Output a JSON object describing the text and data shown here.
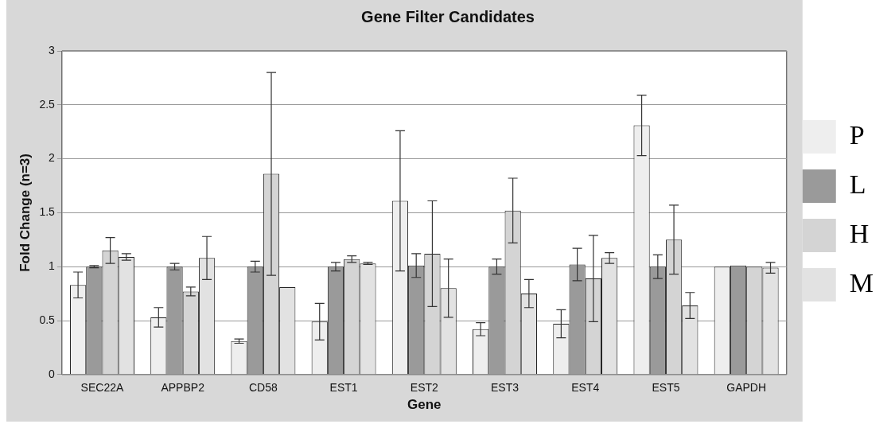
{
  "chart_data": {
    "type": "bar",
    "title": "Gene Filter Candidates",
    "xlabel": "Gene",
    "ylabel": "Fold Change (n=3)",
    "categories": [
      "SEC22A",
      "APPBP2",
      "CD58",
      "EST1",
      "EST2",
      "EST3",
      "EST4",
      "EST5",
      "GAPDH"
    ],
    "series": [
      {
        "name": "P",
        "color": "#eeeeee",
        "values": [
          0.83,
          0.53,
          0.31,
          0.49,
          1.61,
          0.42,
          0.47,
          2.31,
          1.0
        ],
        "errors": [
          0.12,
          0.09,
          0.02,
          0.17,
          0.65,
          0.06,
          0.13,
          0.28,
          null
        ]
      },
      {
        "name": "L",
        "color": "#9a9a9a",
        "values": [
          1.0,
          1.0,
          1.0,
          1.0,
          1.01,
          1.0,
          1.02,
          1.0,
          1.01
        ],
        "errors": [
          0.01,
          0.03,
          0.05,
          0.04,
          0.11,
          0.07,
          0.15,
          0.11,
          null
        ]
      },
      {
        "name": "H",
        "color": "#d4d4d4",
        "values": [
          1.15,
          0.77,
          1.86,
          1.07,
          1.12,
          1.52,
          0.89,
          1.25,
          1.0
        ],
        "errors": [
          0.12,
          0.04,
          0.94,
          0.03,
          0.49,
          0.3,
          0.4,
          0.32,
          null
        ]
      },
      {
        "name": "M",
        "color": "#e2e2e2",
        "values": [
          1.09,
          1.08,
          0.81,
          1.03,
          0.8,
          0.75,
          1.08,
          0.64,
          0.99
        ],
        "errors": [
          0.03,
          0.2,
          null,
          0.01,
          0.27,
          0.13,
          0.05,
          0.12,
          0.05
        ]
      }
    ],
    "ylim": [
      0,
      3
    ],
    "yticks": [
      0,
      0.5,
      1,
      1.5,
      2,
      2.5,
      3
    ],
    "grid": "y",
    "legend": "right"
  }
}
